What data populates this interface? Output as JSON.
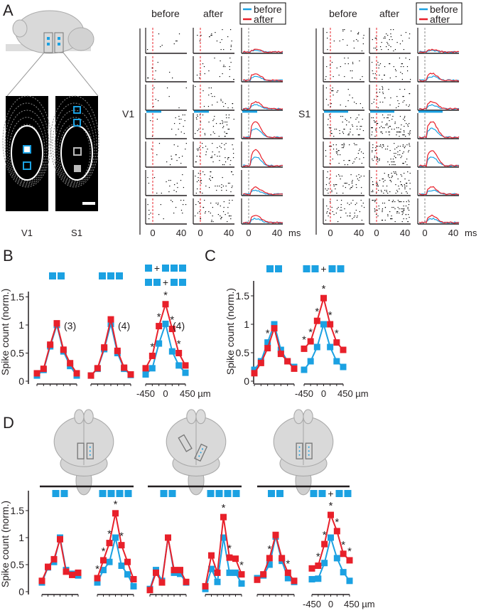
{
  "colors": {
    "before": "#1ba1e2",
    "after": "#e8202a",
    "axis": "#231f20"
  },
  "panel_labels": {
    "a": "A",
    "b": "B",
    "c": "C",
    "d": "D"
  },
  "panelA": {
    "image_labels": {
      "v1": "V1",
      "s1": "S1"
    },
    "raster_groups": [
      {
        "area": "V1",
        "col_before": "before",
        "col_after": "after",
        "legend_before": "before",
        "legend_after": "after",
        "tick0": "0",
        "tick40": "40",
        "unit": "ms"
      },
      {
        "area": "S1",
        "col_before": "before",
        "col_after": "after",
        "legend_before": "before",
        "legend_after": "after",
        "tick0": "0",
        "tick40": "40",
        "unit": "ms"
      }
    ]
  },
  "chart_data": [
    {
      "id": "B1",
      "type": "line",
      "panel": "B",
      "ylabel": "Spike count (norm.)",
      "yticks": [
        "0",
        "0.5",
        "1",
        "1.5"
      ],
      "ylim": [
        0,
        1.6
      ],
      "x": [
        -450,
        -300,
        -150,
        0,
        150,
        300,
        450
      ],
      "stim": [
        [
          2
        ]
      ],
      "n_label": "(3)",
      "series": [
        {
          "name": "before",
          "values": [
            0.1,
            0.2,
            0.62,
            1.0,
            0.53,
            0.27,
            0.1
          ]
        },
        {
          "name": "after",
          "values": [
            0.14,
            0.22,
            0.65,
            1.03,
            0.56,
            0.32,
            0.14
          ]
        }
      ],
      "stars": []
    },
    {
      "id": "B2",
      "type": "line",
      "panel": "B",
      "x": [
        -450,
        -300,
        -150,
        0,
        150,
        300,
        450
      ],
      "stim": [
        [
          3
        ]
      ],
      "n_label": "(4)",
      "series": [
        {
          "name": "before",
          "values": [
            0.1,
            0.22,
            0.57,
            1.02,
            0.5,
            0.22,
            0.11
          ]
        },
        {
          "name": "after",
          "values": [
            0.1,
            0.23,
            0.6,
            1.1,
            0.54,
            0.24,
            0.12
          ]
        }
      ],
      "stars": []
    },
    {
      "id": "B3",
      "type": "line",
      "panel": "B",
      "x": [
        -450,
        -300,
        -150,
        0,
        150,
        300,
        450
      ],
      "stim": [
        [
          1,
          3
        ],
        [
          2,
          2
        ]
      ],
      "n_label": "(4)",
      "xticklabels": [
        "-450",
        "0",
        "450 µm"
      ],
      "series": [
        {
          "name": "before",
          "values": [
            0.12,
            0.23,
            0.67,
            1.02,
            0.53,
            0.28,
            0.15
          ]
        },
        {
          "name": "after",
          "values": [
            0.23,
            0.45,
            0.98,
            1.37,
            0.93,
            0.5,
            0.28
          ]
        }
      ],
      "stars": [
        -300,
        -150,
        0,
        150,
        300
      ]
    },
    {
      "id": "C1",
      "type": "line",
      "panel": "C",
      "ylabel": "Spike count (norm.)",
      "yticks": [
        "0",
        "0.5",
        "1",
        "1.5"
      ],
      "ylim": [
        0,
        1.8
      ],
      "x": [
        -450,
        -300,
        -150,
        0,
        150,
        300,
        450
      ],
      "stim": [
        [
          2
        ]
      ],
      "series": [
        {
          "name": "before",
          "values": [
            0.2,
            0.35,
            0.68,
            1.0,
            0.55,
            0.35,
            0.25
          ]
        },
        {
          "name": "after",
          "values": [
            0.14,
            0.32,
            0.58,
            0.93,
            0.48,
            0.35,
            0.22
          ]
        }
      ],
      "stars": [
        -150
      ]
    },
    {
      "id": "C2",
      "type": "line",
      "panel": "C",
      "x": [
        -450,
        -300,
        -150,
        0,
        150,
        300,
        450
      ],
      "stim": [
        [
          2,
          2
        ]
      ],
      "xticklabels": [
        "-450",
        "0",
        "450 µm"
      ],
      "series": [
        {
          "name": "before",
          "values": [
            0.2,
            0.35,
            0.6,
            1.0,
            0.6,
            0.35,
            0.25
          ]
        },
        {
          "name": "after",
          "values": [
            0.57,
            0.7,
            1.06,
            1.46,
            1.0,
            0.68,
            0.55
          ]
        }
      ],
      "stars": [
        -450,
        -300,
        -150,
        0,
        150,
        300
      ]
    },
    {
      "id": "D1",
      "type": "line",
      "panel": "D",
      "ylabel": "Spike count (norm.)",
      "yticks": [
        "0",
        "0.5",
        "1",
        "1.5"
      ],
      "ylim": [
        0,
        1.8
      ],
      "x": [
        -450,
        -300,
        -150,
        0,
        150,
        300,
        450
      ],
      "stim": [
        [
          2
        ]
      ],
      "series": [
        {
          "name": "before",
          "values": [
            0.17,
            0.45,
            0.55,
            1.0,
            0.4,
            0.33,
            0.3
          ]
        },
        {
          "name": "after",
          "values": [
            0.2,
            0.46,
            0.6,
            0.97,
            0.37,
            0.31,
            0.35
          ]
        }
      ],
      "stars": []
    },
    {
      "id": "D2",
      "type": "line",
      "panel": "D",
      "x": [
        -450,
        -300,
        -150,
        0,
        150,
        300,
        450
      ],
      "stim": [
        [
          4
        ]
      ],
      "series": [
        {
          "name": "before",
          "values": [
            0.17,
            0.4,
            0.55,
            1.0,
            0.48,
            0.32,
            0.1
          ]
        },
        {
          "name": "after",
          "values": [
            0.25,
            0.58,
            0.9,
            1.45,
            0.86,
            0.55,
            0.23
          ]
        }
      ],
      "stars": [
        -450,
        -300,
        -150,
        0,
        150
      ]
    },
    {
      "id": "D3",
      "type": "line",
      "panel": "D",
      "x": [
        -450,
        -300,
        -150,
        0,
        150,
        300,
        450
      ],
      "stim": [
        [
          2
        ]
      ],
      "series": [
        {
          "name": "before",
          "values": [
            0.05,
            0.4,
            0.2,
            1.0,
            0.35,
            0.33,
            0.17
          ]
        },
        {
          "name": "after",
          "values": [
            0.03,
            0.35,
            0.17,
            1.0,
            0.4,
            0.4,
            0.18
          ]
        }
      ],
      "stars": []
    },
    {
      "id": "D4",
      "type": "line",
      "panel": "D",
      "x": [
        -450,
        -300,
        -150,
        0,
        150,
        300,
        450
      ],
      "stim": [
        [
          4
        ]
      ],
      "series": [
        {
          "name": "before",
          "values": [
            0.05,
            0.42,
            0.18,
            1.0,
            0.35,
            0.35,
            0.15
          ]
        },
        {
          "name": "after",
          "values": [
            0.1,
            0.67,
            0.35,
            1.38,
            0.63,
            0.61,
            0.32
          ]
        }
      ],
      "stars": [
        0,
        150,
        450
      ]
    },
    {
      "id": "D5",
      "type": "line",
      "panel": "D",
      "x": [
        -450,
        -300,
        -150,
        0,
        150,
        300,
        450
      ],
      "stim": [
        [
          2
        ]
      ],
      "series": [
        {
          "name": "before",
          "values": [
            0.25,
            0.3,
            0.5,
            1.02,
            0.57,
            0.25,
            0.18
          ]
        },
        {
          "name": "after",
          "values": [
            0.22,
            0.32,
            0.62,
            1.05,
            0.62,
            0.35,
            0.2
          ]
        }
      ],
      "stars": [
        -150,
        300
      ]
    },
    {
      "id": "D6",
      "type": "line",
      "panel": "D",
      "x": [
        -450,
        -300,
        -150,
        0,
        150,
        300,
        450
      ],
      "stim": [
        [
          2,
          2
        ]
      ],
      "xticklabels": [
        "-450",
        "0",
        "450 µm"
      ],
      "series": [
        {
          "name": "before",
          "values": [
            0.23,
            0.24,
            0.53,
            1.0,
            0.62,
            0.36,
            0.2
          ]
        },
        {
          "name": "after",
          "values": [
            0.43,
            0.48,
            0.88,
            1.42,
            1.12,
            0.7,
            0.58
          ]
        }
      ],
      "stars": [
        -300,
        -150,
        0,
        150,
        300,
        450
      ]
    }
  ],
  "symbols": {
    "plus": "+",
    "star": "*"
  }
}
